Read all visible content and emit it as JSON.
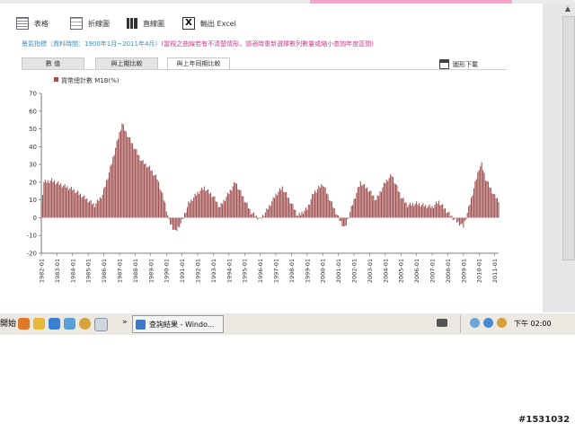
{
  "toolbar": {
    "table_label": "表格",
    "line_label": "折線圖",
    "bar_label": "直線圖",
    "excel_label": "輸出 Excel",
    "download_label": "圖形下載"
  },
  "info": {
    "indicator": "景氣指標（資料時間：1900年1月~2011年4月）",
    "note": "(當視之曲線若有不清楚情形，請適時重新選擇數列數量或縮小查詢年度區間)"
  },
  "tabs": [
    {
      "label": "數 值"
    },
    {
      "label": "與上期比較"
    },
    {
      "label": "與上年同期比較"
    }
  ],
  "chart_data": {
    "type": "bar",
    "series": [
      {
        "name": "貨幣總計數 M1B(%)",
        "color": "#a05050"
      }
    ],
    "ylim": [
      -20,
      70
    ],
    "yticks": [
      -20,
      -10,
      0,
      10,
      20,
      30,
      40,
      50,
      60,
      70
    ],
    "xticklabels": [
      "1982-01",
      "1983-01",
      "1984-01",
      "1985-01",
      "1986-01",
      "1987-01",
      "1988-01",
      "1989-01",
      "1990-01",
      "1991-01",
      "1992-01",
      "1993-01",
      "1994-01",
      "1995-01",
      "1996-01",
      "1997-01",
      "1998-01",
      "1999-01",
      "2000-01",
      "2001-01",
      "2002-01",
      "2003-01",
      "2004-01",
      "2005-01",
      "2006-01",
      "2007-01",
      "2008-01",
      "2009-01",
      "2010-01",
      "2011-01"
    ],
    "x_start": "1982-01",
    "x_end": "2011-04",
    "anchors": [
      [
        "1982-01",
        8
      ],
      [
        "1982-03",
        20
      ],
      [
        "1982-09",
        21
      ],
      [
        "1983-06",
        18
      ],
      [
        "1984-01",
        16
      ],
      [
        "1984-09",
        12
      ],
      [
        "1985-06",
        7
      ],
      [
        "1985-12",
        13
      ],
      [
        "1986-06",
        28
      ],
      [
        "1986-12",
        45
      ],
      [
        "1987-03",
        53
      ],
      [
        "1987-06",
        48
      ],
      [
        "1987-12",
        40
      ],
      [
        "1988-06",
        32
      ],
      [
        "1988-12",
        28
      ],
      [
        "1989-06",
        22
      ],
      [
        "1989-12",
        8
      ],
      [
        "1990-03",
        -2
      ],
      [
        "1990-08",
        -8
      ],
      [
        "1991-01",
        -2
      ],
      [
        "1991-06",
        8
      ],
      [
        "1992-01",
        14
      ],
      [
        "1992-06",
        17
      ],
      [
        "1993-01",
        12
      ],
      [
        "1993-06",
        6
      ],
      [
        "1994-01",
        14
      ],
      [
        "1994-06",
        20
      ],
      [
        "1995-01",
        10
      ],
      [
        "1995-06",
        3
      ],
      [
        "1996-01",
        -1
      ],
      [
        "1996-06",
        4
      ],
      [
        "1997-01",
        13
      ],
      [
        "1997-06",
        17
      ],
      [
        "1998-01",
        8
      ],
      [
        "1998-06",
        1
      ],
      [
        "1999-01",
        5
      ],
      [
        "1999-06",
        14
      ],
      [
        "2000-01",
        19
      ],
      [
        "2000-06",
        11
      ],
      [
        "2001-01",
        0
      ],
      [
        "2001-06",
        -6
      ],
      [
        "2002-01",
        10
      ],
      [
        "2002-06",
        20
      ],
      [
        "2003-01",
        15
      ],
      [
        "2003-06",
        10
      ],
      [
        "2004-01",
        20
      ],
      [
        "2004-06",
        24
      ],
      [
        "2005-01",
        12
      ],
      [
        "2005-06",
        7
      ],
      [
        "2006-01",
        8
      ],
      [
        "2006-06",
        7
      ],
      [
        "2007-01",
        6
      ],
      [
        "2007-06",
        9
      ],
      [
        "2008-01",
        3
      ],
      [
        "2008-06",
        -1
      ],
      [
        "2009-01",
        -5
      ],
      [
        "2009-06",
        8
      ],
      [
        "2010-01",
        28
      ],
      [
        "2010-03",
        30
      ],
      [
        "2010-06",
        22
      ],
      [
        "2011-01",
        12
      ],
      [
        "2011-04",
        10
      ]
    ]
  },
  "taskbar": {
    "start_label": "開始",
    "task_label": "查詢結果 - Windo...",
    "clock": "下午 02:00"
  },
  "watermark": "#1531032"
}
